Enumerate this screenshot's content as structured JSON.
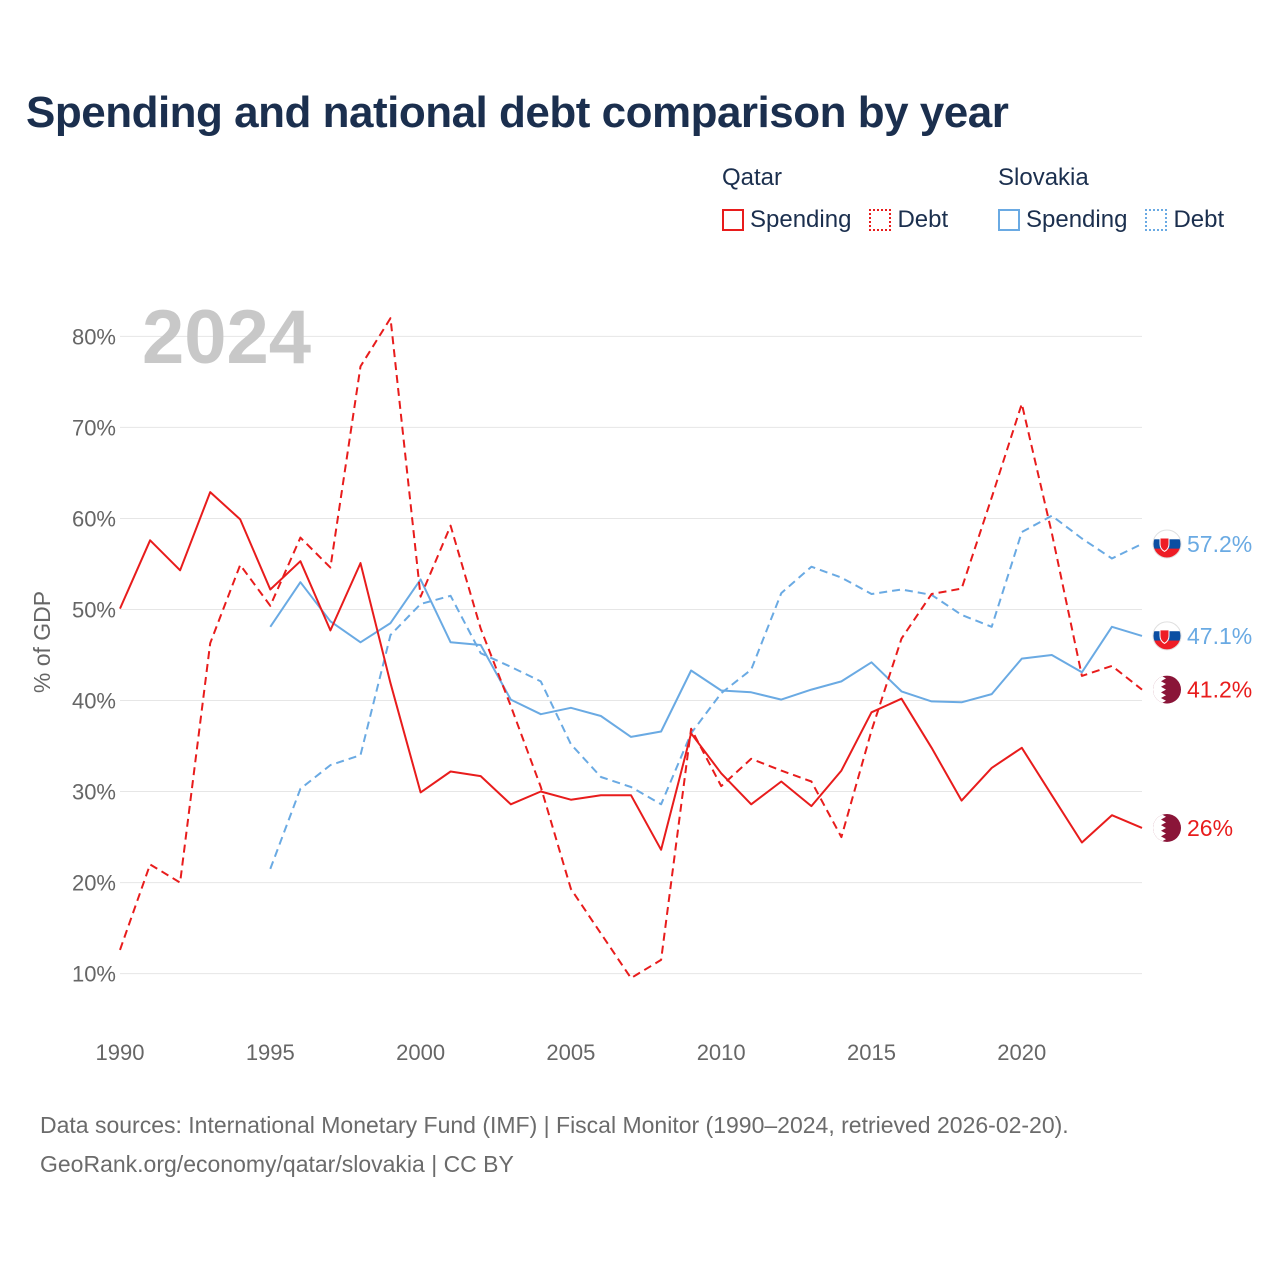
{
  "page": {
    "title": "Spending and national debt comparison by year",
    "source_line1": "Data sources: International Monetary Fund (IMF) | Fiscal Monitor (1990–2024, retrieved 2026-02-20).",
    "source_line2": "GeoRank.org/economy/qatar/slovakia | CC BY"
  },
  "legend": {
    "qatar": {
      "country": "Qatar",
      "spending": "Spending",
      "debt": "Debt"
    },
    "slovakia": {
      "country": "Slovakia",
      "spending": "Spending",
      "debt": "Debt"
    }
  },
  "colors": {
    "qatar": "#e81c1c",
    "slovakia": "#6aaae3",
    "title": "#1b2f4e",
    "qatar_flag": "#8a1538"
  },
  "chart_data": {
    "type": "line",
    "title": "Spending and national debt comparison by year",
    "year_label": "2024",
    "xlabel": "",
    "ylabel": "% of GDP",
    "xlim": [
      1990,
      2024
    ],
    "ylim": [
      6,
      84
    ],
    "x_ticks": [
      1990,
      1995,
      2000,
      2005,
      2010,
      2015,
      2020
    ],
    "y_ticks": [
      10,
      20,
      30,
      40,
      50,
      60,
      70,
      80
    ],
    "y_tick_labels": [
      "10%",
      "20%",
      "30%",
      "40%",
      "50%",
      "60%",
      "70%",
      "80%"
    ],
    "grid": true,
    "series": [
      {
        "name": "Qatar Spending",
        "country": "qatar",
        "style": "solid",
        "end_label": "26%",
        "points": [
          [
            1990,
            50.1
          ],
          [
            1991,
            57.6
          ],
          [
            1992,
            54.3
          ],
          [
            1993,
            62.9
          ],
          [
            1994,
            59.9
          ],
          [
            1995,
            52.2
          ],
          [
            1996,
            55.3
          ],
          [
            1997,
            47.7
          ],
          [
            1998,
            55.1
          ],
          [
            1999,
            41.9
          ],
          [
            2000,
            29.9
          ],
          [
            2001,
            32.2
          ],
          [
            2002,
            31.7
          ],
          [
            2003,
            28.6
          ],
          [
            2004,
            30.0
          ],
          [
            2005,
            29.1
          ],
          [
            2006,
            29.6
          ],
          [
            2007,
            29.6
          ],
          [
            2008,
            23.6
          ],
          [
            2009,
            36.4
          ],
          [
            2010,
            32.0
          ],
          [
            2011,
            28.6
          ],
          [
            2012,
            31.1
          ],
          [
            2013,
            28.4
          ],
          [
            2014,
            32.3
          ],
          [
            2015,
            38.7
          ],
          [
            2016,
            40.2
          ],
          [
            2017,
            34.8
          ],
          [
            2018,
            29.0
          ],
          [
            2019,
            32.6
          ],
          [
            2020,
            34.8
          ],
          [
            2021,
            29.6
          ],
          [
            2022,
            24.4
          ],
          [
            2023,
            27.4
          ],
          [
            2024,
            26.0
          ]
        ]
      },
      {
        "name": "Qatar Debt",
        "country": "qatar",
        "style": "dashed",
        "end_label": "41.2%",
        "points": [
          [
            1990,
            12.6
          ],
          [
            1991,
            22.0
          ],
          [
            1992,
            20.0
          ],
          [
            1993,
            46.3
          ],
          [
            1994,
            54.9
          ],
          [
            1995,
            50.4
          ],
          [
            1996,
            57.9
          ],
          [
            1997,
            54.6
          ],
          [
            1998,
            76.7
          ],
          [
            1999,
            82.0
          ],
          [
            2000,
            51.4
          ],
          [
            2001,
            59.2
          ],
          [
            2002,
            47.9
          ],
          [
            2003,
            39.4
          ],
          [
            2004,
            30.5
          ],
          [
            2005,
            19.3
          ],
          [
            2006,
            14.4
          ],
          [
            2007,
            9.5
          ],
          [
            2008,
            11.5
          ],
          [
            2009,
            36.9
          ],
          [
            2010,
            30.6
          ],
          [
            2011,
            33.6
          ],
          [
            2012,
            32.3
          ],
          [
            2013,
            31.1
          ],
          [
            2014,
            25.0
          ],
          [
            2015,
            36.7
          ],
          [
            2016,
            46.8
          ],
          [
            2017,
            51.7
          ],
          [
            2018,
            52.3
          ],
          [
            2019,
            62.3
          ],
          [
            2020,
            72.6
          ],
          [
            2021,
            58.4
          ],
          [
            2022,
            42.7
          ],
          [
            2023,
            43.8
          ],
          [
            2024,
            41.2
          ]
        ]
      },
      {
        "name": "Slovakia Spending",
        "country": "slovakia",
        "style": "solid",
        "end_label": "47.1%",
        "points": [
          [
            1995,
            48.1
          ],
          [
            1996,
            53.0
          ],
          [
            1997,
            48.7
          ],
          [
            1998,
            46.4
          ],
          [
            1999,
            48.5
          ],
          [
            2000,
            53.3
          ],
          [
            2001,
            46.4
          ],
          [
            2002,
            46.1
          ],
          [
            2003,
            40.1
          ],
          [
            2004,
            38.5
          ],
          [
            2005,
            39.2
          ],
          [
            2006,
            38.3
          ],
          [
            2007,
            36.0
          ],
          [
            2008,
            36.6
          ],
          [
            2009,
            43.3
          ],
          [
            2010,
            41.1
          ],
          [
            2011,
            40.9
          ],
          [
            2012,
            40.1
          ],
          [
            2013,
            41.2
          ],
          [
            2014,
            42.1
          ],
          [
            2015,
            44.2
          ],
          [
            2016,
            41.0
          ],
          [
            2017,
            39.9
          ],
          [
            2018,
            39.8
          ],
          [
            2019,
            40.7
          ],
          [
            2020,
            44.6
          ],
          [
            2021,
            45.0
          ],
          [
            2022,
            43.1
          ],
          [
            2023,
            48.1
          ],
          [
            2024,
            47.1
          ]
        ]
      },
      {
        "name": "Slovakia Debt",
        "country": "slovakia",
        "style": "dashed",
        "end_label": "57.2%",
        "points": [
          [
            1995,
            21.5
          ],
          [
            1996,
            30.3
          ],
          [
            1997,
            32.9
          ],
          [
            1998,
            34.0
          ],
          [
            1999,
            47.2
          ],
          [
            2000,
            50.6
          ],
          [
            2001,
            51.5
          ],
          [
            2002,
            45.2
          ],
          [
            2003,
            43.7
          ],
          [
            2004,
            42.1
          ],
          [
            2005,
            35.2
          ],
          [
            2006,
            31.6
          ],
          [
            2007,
            30.5
          ],
          [
            2008,
            28.6
          ],
          [
            2009,
            36.4
          ],
          [
            2010,
            40.8
          ],
          [
            2011,
            43.4
          ],
          [
            2012,
            51.8
          ],
          [
            2013,
            54.7
          ],
          [
            2014,
            53.5
          ],
          [
            2015,
            51.7
          ],
          [
            2016,
            52.2
          ],
          [
            2017,
            51.6
          ],
          [
            2018,
            49.4
          ],
          [
            2019,
            48.1
          ],
          [
            2020,
            58.5
          ],
          [
            2021,
            60.3
          ],
          [
            2022,
            57.8
          ],
          [
            2023,
            55.6
          ],
          [
            2024,
            57.2
          ]
        ]
      }
    ]
  }
}
